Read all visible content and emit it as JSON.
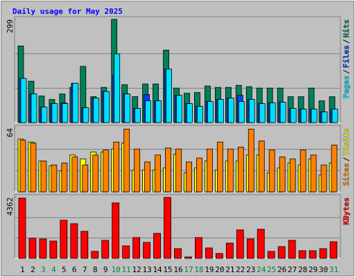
{
  "chart_data": [
    {
      "type": "bar",
      "title": "Daily usage for May 2025",
      "ylim": [
        0,
        299
      ],
      "yticks": [
        299
      ],
      "legend_separator": "/",
      "series": [
        {
          "name": "Hits",
          "color": "#00805c",
          "values": [
            222,
            120,
            77,
            67,
            83,
            102,
            163,
            75,
            102,
            299,
            110,
            75,
            112,
            112,
            210,
            100,
            85,
            87,
            106,
            102,
            102,
            108,
            104,
            100,
            100,
            100,
            75,
            75,
            100,
            63,
            75
          ]
        },
        {
          "name": "Files",
          "color": "#0040ff",
          "values": [
            128,
            83,
            45,
            55,
            57,
            114,
            43,
            71,
            90,
            138,
            83,
            41,
            81,
            63,
            155,
            79,
            55,
            47,
            61,
            67,
            71,
            79,
            67,
            55,
            57,
            59,
            41,
            39,
            39,
            31,
            39
          ]
        },
        {
          "name": "Pages",
          "color": "#00e0ff",
          "values": [
            128,
            83,
            45,
            55,
            55,
            114,
            43,
            71,
            90,
            199,
            83,
            41,
            63,
            63,
            155,
            79,
            55,
            47,
            61,
            67,
            71,
            61,
            67,
            55,
            57,
            59,
            41,
            39,
            39,
            31,
            39
          ]
        }
      ]
    },
    {
      "type": "bar",
      "ylim": [
        0,
        64
      ],
      "yticks": [
        64
      ],
      "legend_separator": "/",
      "series": [
        {
          "name": "Visits",
          "color": "#ffff00",
          "values": [
            53,
            50,
            31,
            26,
            21,
            37,
            33,
            40,
            40,
            43,
            49,
            22,
            22,
            22,
            24,
            38,
            19,
            24,
            31,
            22,
            31,
            31,
            37,
            37,
            19,
            24,
            29,
            27,
            33,
            17,
            29
          ]
        },
        {
          "name": "Sites",
          "color": "#ff8000",
          "values": [
            52,
            49,
            31,
            27,
            29,
            35,
            27,
            37,
            42,
            50,
            63,
            43,
            30,
            37,
            44,
            43,
            30,
            34,
            43,
            50,
            43,
            45,
            63,
            51,
            42,
            35,
            33,
            42,
            37,
            27,
            47
          ]
        }
      ]
    },
    {
      "type": "bar",
      "ylim": [
        0,
        4362
      ],
      "yticks": [
        4362
      ],
      "categories": [
        "1",
        "2",
        "3",
        "4",
        "5",
        "6",
        "7",
        "8",
        "9",
        "10",
        "11",
        "12",
        "13",
        "14",
        "15",
        "16",
        "17",
        "18",
        "19",
        "20",
        "21",
        "22",
        "23",
        "24",
        "25",
        "26",
        "27",
        "28",
        "29",
        "30",
        "31"
      ],
      "category_label_colors": [
        "#000000",
        "#000000",
        "#008040",
        "#008040",
        "#000000",
        "#000000",
        "#000000",
        "#000000",
        "#000000",
        "#008040",
        "#008040",
        "#000000",
        "#000000",
        "#000000",
        "#000000",
        "#000000",
        "#008040",
        "#008040",
        "#000000",
        "#000000",
        "#000000",
        "#000000",
        "#000000",
        "#008040",
        "#008040",
        "#000000",
        "#000000",
        "#000000",
        "#000000",
        "#000000",
        "#008040"
      ],
      "series": [
        {
          "name": "KBytes",
          "color": "#ff0000",
          "values": [
            4312,
            1437,
            1388,
            1239,
            2726,
            2478,
            1933,
            496,
            1289,
            3965,
            892,
            1487,
            1140,
            1784,
            4362,
            694,
            99,
            1487,
            744,
            347,
            1090,
            2032,
            1388,
            2082,
            496,
            843,
            1289,
            545,
            545,
            694,
            1190
          ]
        }
      ]
    }
  ]
}
